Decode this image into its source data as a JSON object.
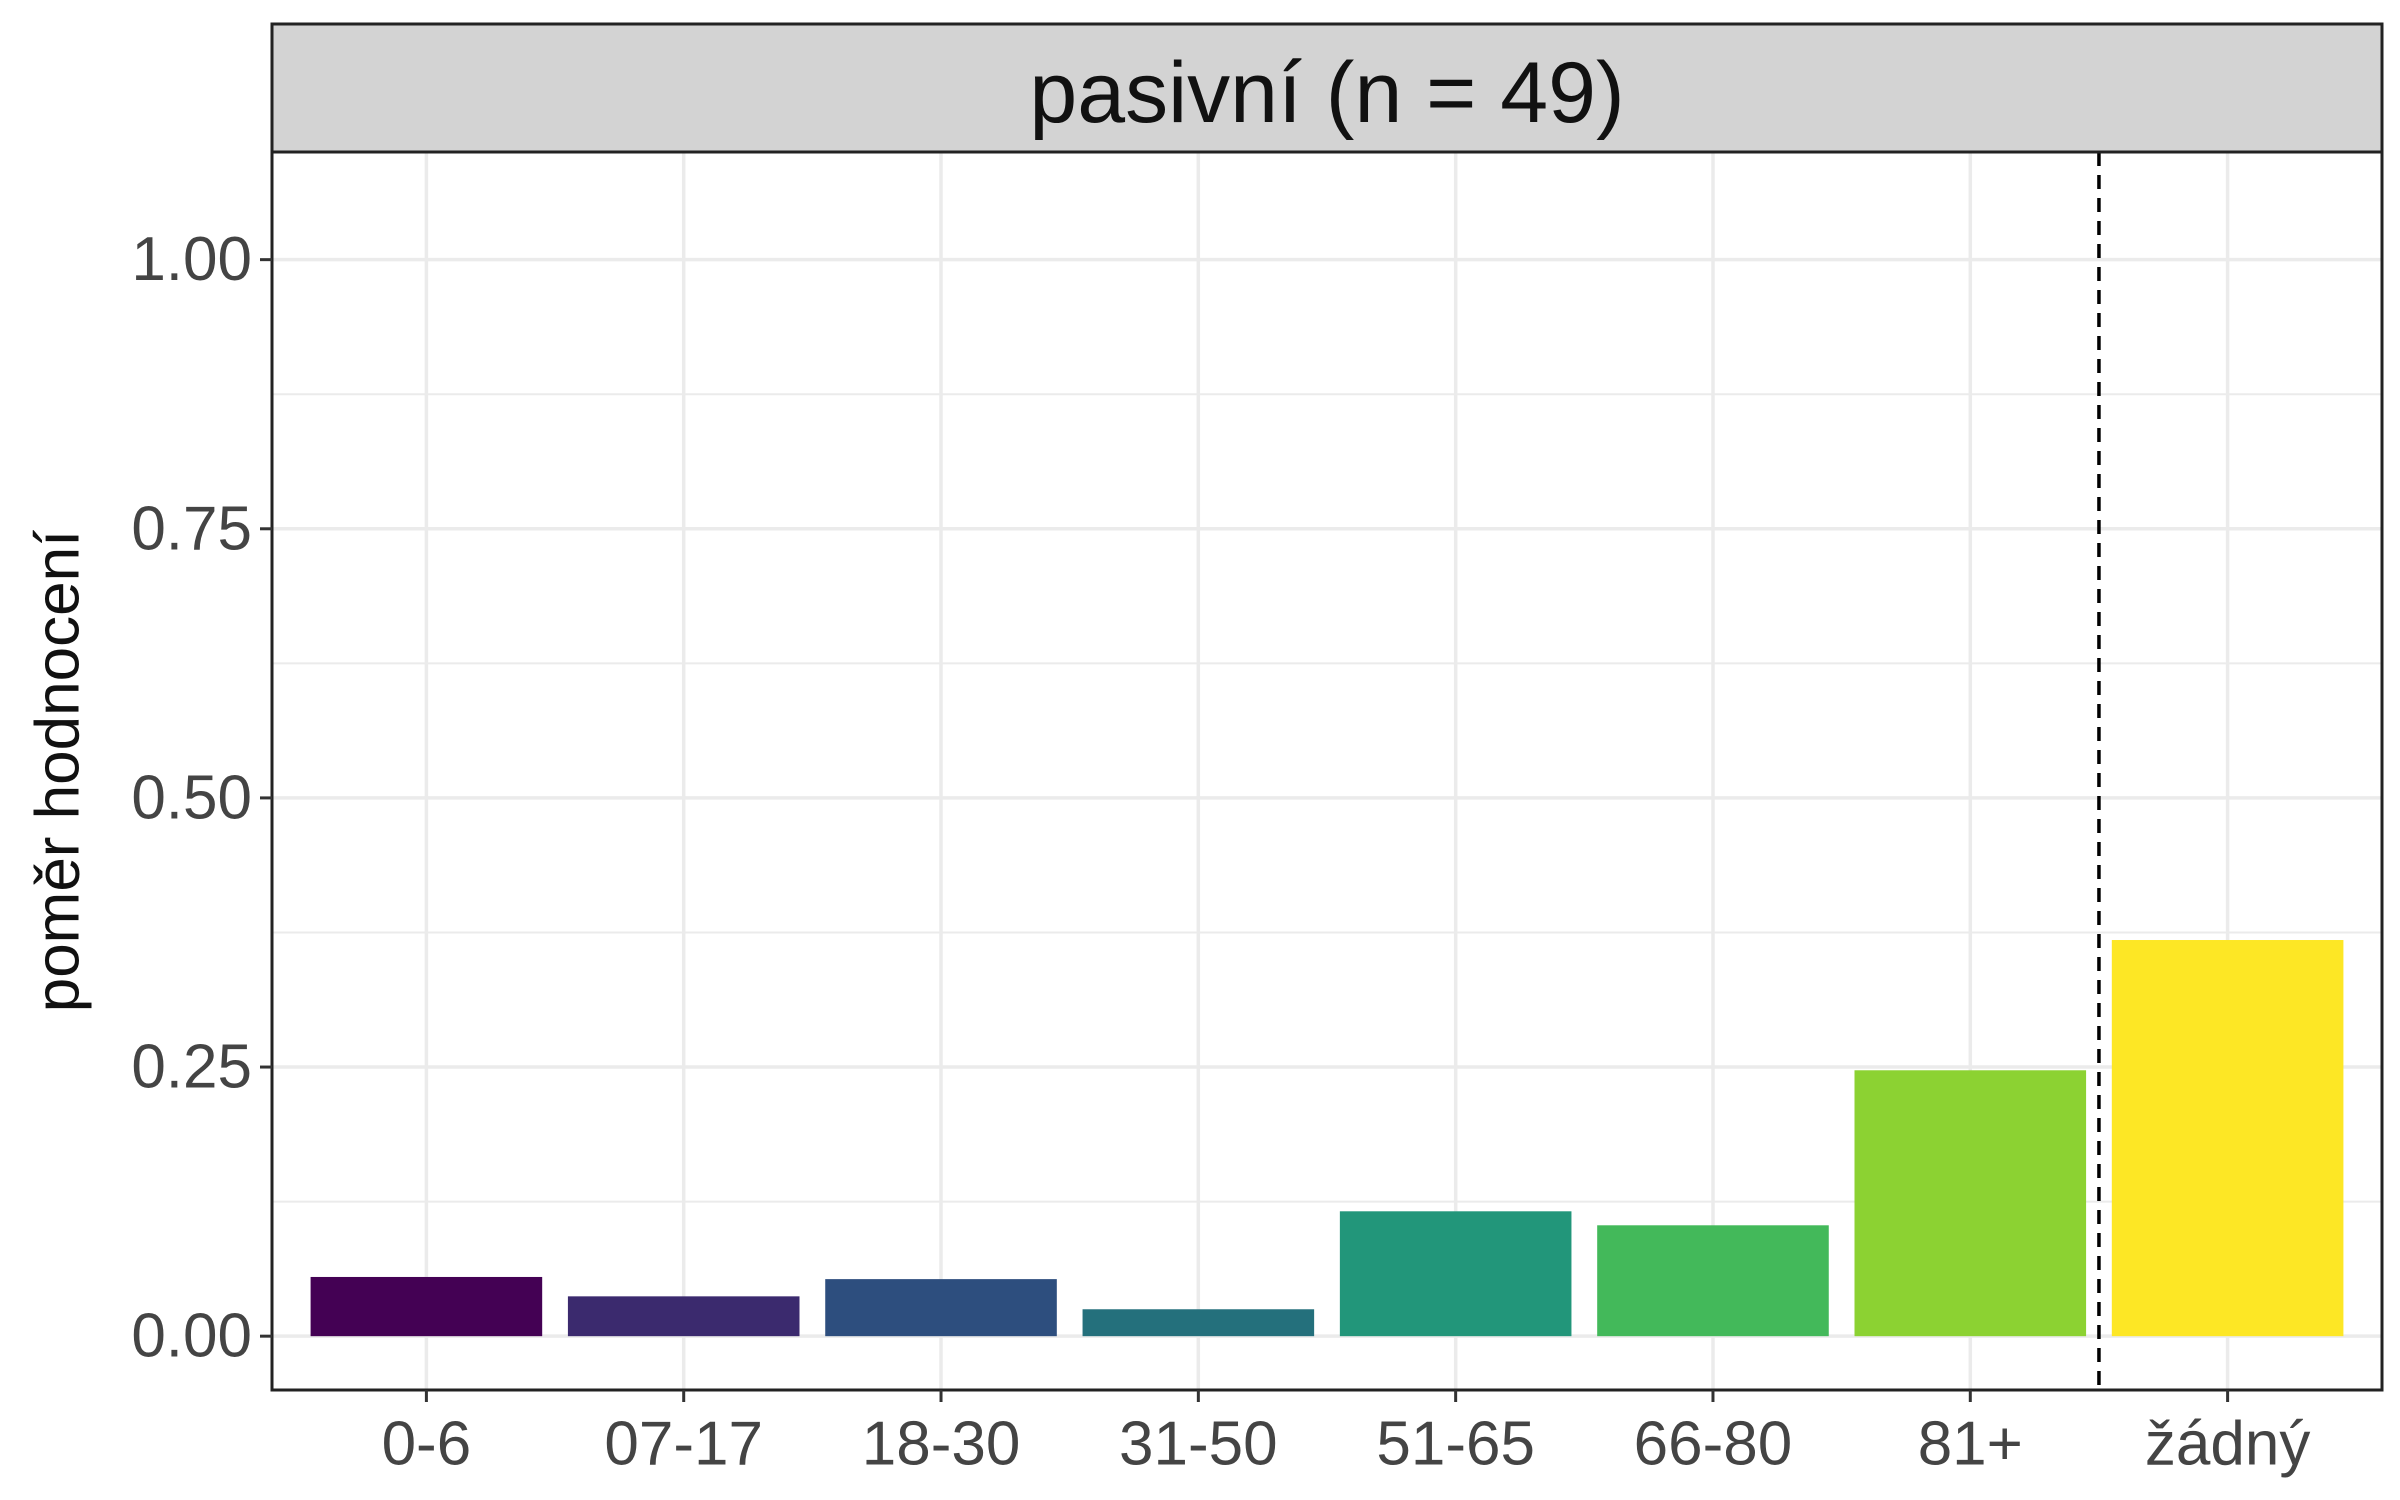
{
  "chart_data": {
    "type": "bar",
    "facet_title": "pasivní (n = 49)",
    "xlabel": "",
    "ylabel": "poměr hodnocení",
    "categories": [
      "0-6",
      "07-17",
      "18-30",
      "31-50",
      "51-65",
      "66-80",
      "81+",
      "žádný"
    ],
    "values": [
      0.055,
      0.037,
      0.053,
      0.025,
      0.116,
      0.103,
      0.247,
      0.368
    ],
    "colors": [
      "#440154",
      "#3B2A6E",
      "#2D4E7E",
      "#24707C",
      "#22967A",
      "#43B95A",
      "#8CD232",
      "#FDE725"
    ],
    "ylim": [
      -0.05,
      1.1
    ],
    "yticks": [
      0.0,
      0.25,
      0.5,
      0.75,
      1.0
    ],
    "ytick_labels": [
      "0.00",
      "0.25",
      "0.50",
      "0.75",
      "1.00"
    ],
    "reference_line": {
      "style": "dashed",
      "between": [
        "81+",
        "žádný"
      ]
    },
    "grid": true,
    "theme": {
      "strip_background": "#D3D3D3",
      "panel_border": "#222222",
      "grid_color": "#EBEBEB",
      "text_color": "#111111",
      "tick_label_color": "#444444"
    }
  }
}
